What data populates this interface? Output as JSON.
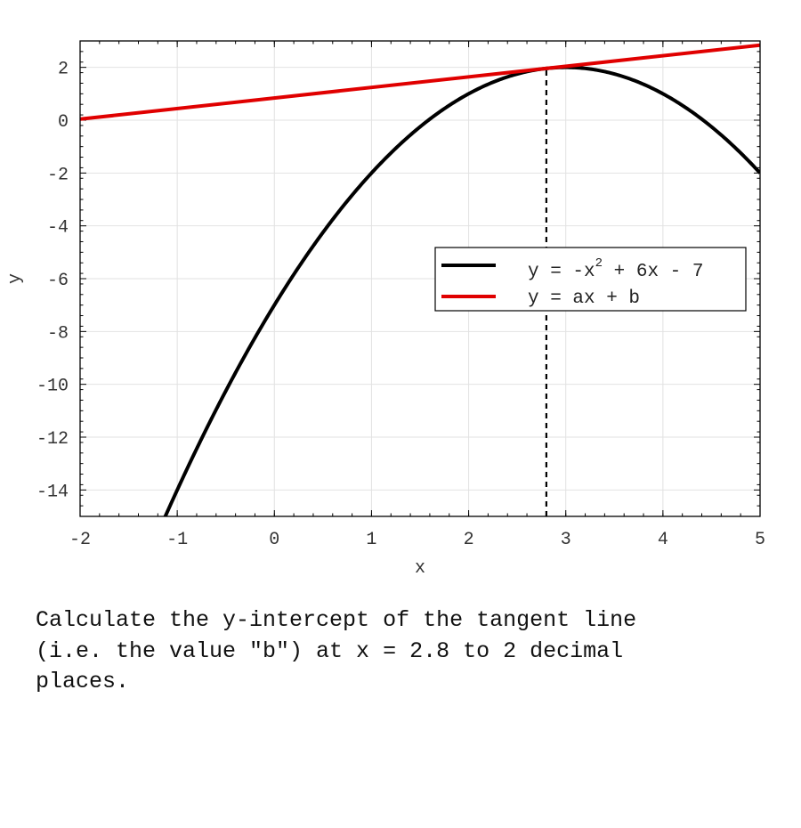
{
  "chart_data": {
    "type": "line",
    "title": "",
    "xlabel": "x",
    "ylabel": "y",
    "xlim": [
      -2,
      5
    ],
    "ylim": [
      -15,
      3
    ],
    "xticks": [
      "-2",
      "-1",
      "0",
      "1",
      "2",
      "3",
      "4",
      "5"
    ],
    "yticks": [
      "2",
      "0",
      "-2",
      "-4",
      "-6",
      "-8",
      "-10",
      "-12",
      "-14"
    ],
    "grid": true,
    "legend_position": "right",
    "series": [
      {
        "name_parts": [
          "y = -x",
          "2",
          " + 6x - 7"
        ],
        "color": "#000000",
        "expression": "-x^2 + 6x - 7",
        "coefficients": [
          -1,
          6,
          -7
        ]
      },
      {
        "name": "y = ax + b",
        "color": "#e00000",
        "endpoints": [
          [
            -2,
            0.04
          ],
          [
            5,
            2.84
          ]
        ]
      }
    ],
    "vertical_marker": {
      "x": 2.8,
      "style": "dashed",
      "color": "#000000"
    }
  },
  "question": "Calculate the y-intercept of the tangent line\n(i.e. the value \"b\") at x = 2.8 to 2 decimal\nplaces."
}
